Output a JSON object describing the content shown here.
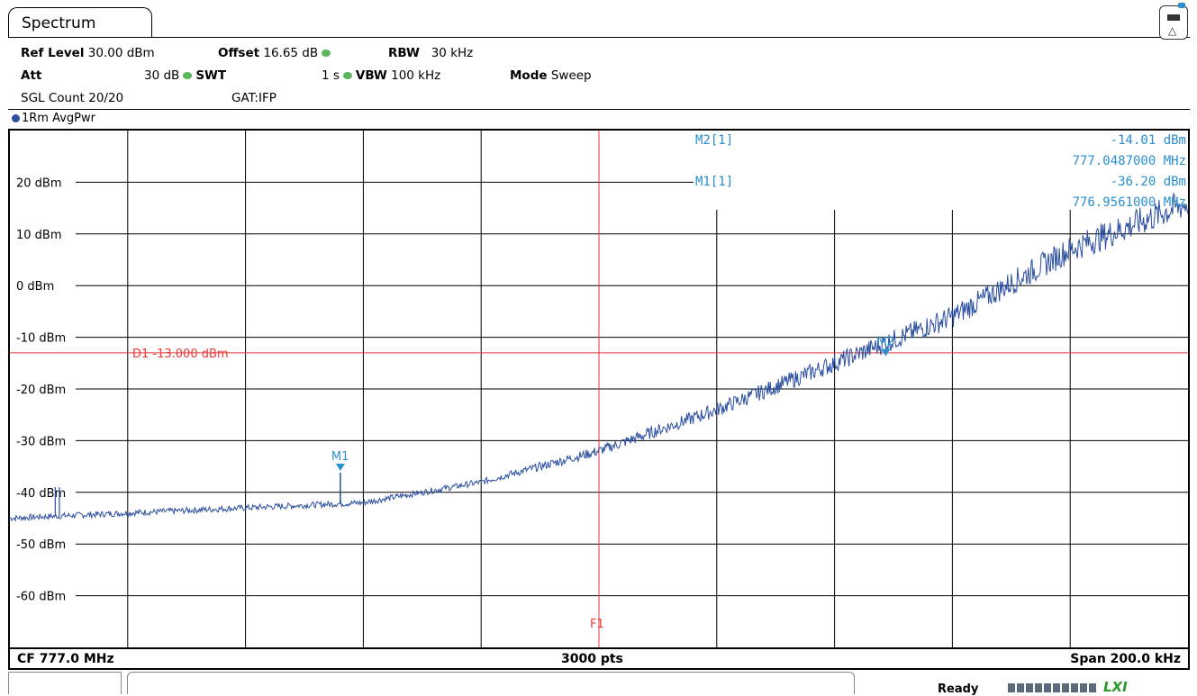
{
  "tab": {
    "label": "Spectrum"
  },
  "header": {
    "ref_level_label": "Ref Level",
    "ref_level_value": "30.00 dBm",
    "offset_label": "Offset",
    "offset_value": "16.65 dB",
    "rbw_label": "RBW",
    "rbw_value": "30 kHz",
    "att_label": "Att",
    "att_value": "30 dB",
    "swt_label": "SWT",
    "swt_value": "1 s",
    "vbw_label": "VBW",
    "vbw_value": "100 kHz",
    "mode_label": "Mode",
    "mode_value": "Sweep",
    "sgl_count": "SGL Count 20/20",
    "gat": "GAT:IFP"
  },
  "trace_label": "1Rm AvgPwr",
  "markers": {
    "m2_label": "M2[1]",
    "m2_level": "-14.01 dBm",
    "m2_freq": "777.0487000 MHz",
    "m1_label": "M1[1]",
    "m1_level": "-36.20 dBm",
    "m1_freq": "776.9561000 MHz",
    "m1_tag": "M1",
    "m2_tag": "M2"
  },
  "display_line": {
    "label": "D1 -13.000 dBm",
    "level": -13
  },
  "freq_line": {
    "label": "F1"
  },
  "footer": {
    "cf": "CF 777.0 MHz",
    "pts": "3000 pts",
    "span": "Span 200.0 kHz"
  },
  "status": {
    "ready": "Ready",
    "lxi": "LXI"
  },
  "colors": {
    "trace": "#2b4ea0",
    "marker": "#2a8fd1",
    "line": "#e83a3a",
    "grid": "#000000"
  },
  "chart_data": {
    "type": "line",
    "y_ticks": [
      "20 dBm",
      "10 dBm",
      "0 dBm",
      "-10 dBm",
      "-20 dBm",
      "-30 dBm",
      "-40 dBm",
      "-50 dBm",
      "-60 dBm"
    ],
    "y_tick_values": [
      20,
      10,
      0,
      -10,
      -20,
      -30,
      -40,
      -50,
      -60
    ],
    "ylim": [
      -70,
      30
    ],
    "xlim_mhz": [
      776.9,
      777.1
    ],
    "series": [
      {
        "x_mhz": [
          776.9,
          776.92,
          776.94,
          776.96,
          776.98,
          777.0,
          777.02,
          777.04,
          777.06,
          777.08,
          777.1
        ],
        "values": [
          -45,
          -44,
          -43,
          -42,
          -38,
          -32,
          -24,
          -15,
          -6,
          7,
          16
        ]
      }
    ],
    "spurs": [
      {
        "x_mhz": 776.9077,
        "level": -39
      },
      {
        "x_mhz": 776.9084,
        "level": -39
      }
    ],
    "marker_points": [
      {
        "name": "M1",
        "x_mhz": 776.9561,
        "level": -36.2
      },
      {
        "name": "M2",
        "x_mhz": 777.0487,
        "level": -14.01
      }
    ],
    "grid": true
  }
}
